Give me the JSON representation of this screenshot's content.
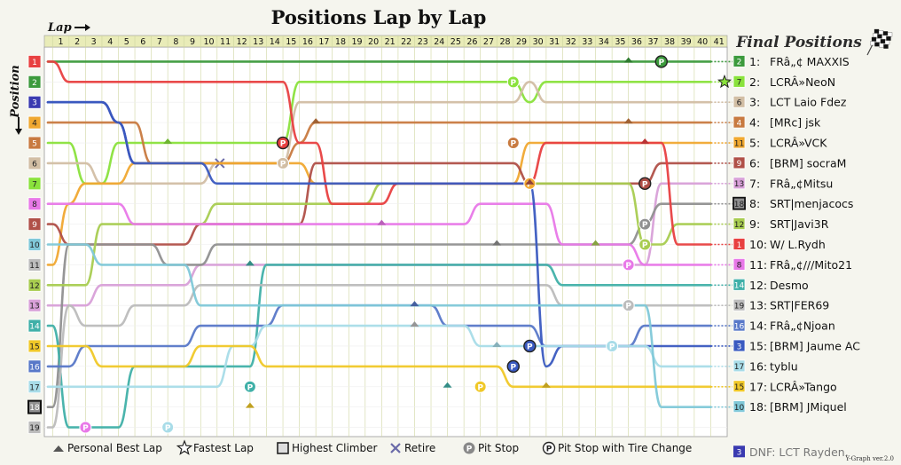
{
  "chart_data": {
    "type": "line",
    "title": "Positions Lap by Lap",
    "xlabel": "Lap",
    "ylabel": "Position",
    "laps": [
      1,
      2,
      3,
      4,
      5,
      6,
      7,
      8,
      9,
      10,
      11,
      12,
      13,
      14,
      15,
      16,
      17,
      18,
      19,
      20,
      21,
      22,
      23,
      24,
      25,
      26,
      27,
      28,
      29,
      30,
      31,
      32,
      33,
      34,
      35,
      36,
      37,
      38,
      39,
      40,
      41
    ],
    "start_positions": [
      "1",
      "2",
      "3",
      "4",
      "5",
      "6",
      "7",
      "8",
      "9",
      "10",
      "11",
      "12",
      "13",
      "14",
      "15",
      "16",
      "17",
      "18",
      "19"
    ],
    "final_positions_title": "Final Positions",
    "series": [
      {
        "grid": 2,
        "finish": 1,
        "color": "#3c9a3c",
        "name": "FRâ„¢ MAXXIS",
        "positions": [
          1,
          1,
          1,
          1,
          1,
          1,
          1,
          1,
          1,
          1,
          1,
          1,
          1,
          1,
          1,
          1,
          1,
          1,
          1,
          1,
          1,
          1,
          1,
          1,
          1,
          1,
          1,
          1,
          1,
          1,
          1,
          1,
          1,
          1,
          1,
          1,
          1,
          1,
          1,
          1,
          1
        ]
      },
      {
        "grid": 7,
        "finish": 2,
        "color": "#8ae23c",
        "name": "LCRÂ»NeoN",
        "positions": [
          5,
          5,
          7,
          7,
          5,
          5,
          5,
          5,
          5,
          5,
          5,
          5,
          5,
          5,
          5,
          2,
          2,
          2,
          2,
          2,
          2,
          2,
          2,
          2,
          2,
          2,
          2,
          2,
          2,
          3,
          2,
          2,
          2,
          2,
          2,
          2,
          2,
          2,
          2,
          2,
          2
        ]
      },
      {
        "grid": 6,
        "finish": 3,
        "color": "#d2bea4",
        "name": "LCT Laio Fdez",
        "positions": [
          6,
          6,
          6,
          7,
          7,
          7,
          7,
          7,
          7,
          7,
          6,
          6,
          6,
          6,
          6,
          3,
          3,
          3,
          3,
          3,
          3,
          3,
          3,
          3,
          3,
          3,
          3,
          3,
          3,
          2,
          3,
          3,
          3,
          3,
          3,
          3,
          3,
          3,
          3,
          3,
          3
        ]
      },
      {
        "grid": 4,
        "finish": 4,
        "color": "#c87a40",
        "name": "[MRc] jsk",
        "positions": [
          4,
          4,
          4,
          4,
          4,
          4,
          6,
          6,
          6,
          6,
          6,
          6,
          6,
          6,
          6,
          5,
          4,
          4,
          4,
          4,
          4,
          4,
          4,
          4,
          4,
          4,
          4,
          4,
          4,
          4,
          4,
          4,
          4,
          4,
          4,
          4,
          4,
          4,
          4,
          4,
          4
        ]
      },
      {
        "grid": 11,
        "finish": 5,
        "color": "#f0a830",
        "name": "LCRÂ»VCK",
        "positions": [
          11,
          8,
          7,
          7,
          7,
          6,
          6,
          6,
          6,
          6,
          6,
          6,
          6,
          6,
          6,
          6,
          7,
          7,
          7,
          7,
          7,
          7,
          7,
          7,
          7,
          7,
          7,
          7,
          7,
          5,
          5,
          5,
          5,
          5,
          5,
          5,
          5,
          5,
          5,
          5,
          5
        ]
      },
      {
        "grid": 9,
        "finish": 6,
        "color": "#b05048",
        "name": "[BRM] socraM",
        "positions": [
          9,
          10,
          10,
          10,
          10,
          10,
          10,
          10,
          10,
          9,
          9,
          9,
          9,
          9,
          9,
          9,
          6,
          6,
          6,
          6,
          6,
          6,
          6,
          6,
          6,
          6,
          6,
          6,
          6,
          7,
          7,
          7,
          7,
          7,
          7,
          7,
          7,
          6,
          6,
          6,
          6
        ]
      },
      {
        "grid": 13,
        "finish": 7,
        "color": "#d8a0d8",
        "name": "FRâ„¢Mitsu",
        "positions": [
          13,
          13,
          13,
          12,
          12,
          12,
          12,
          12,
          12,
          11,
          11,
          11,
          11,
          11,
          11,
          11,
          11,
          11,
          11,
          11,
          11,
          11,
          11,
          11,
          11,
          11,
          11,
          11,
          11,
          11,
          11,
          11,
          11,
          11,
          11,
          11,
          11,
          7,
          7,
          7,
          7
        ]
      },
      {
        "grid": 18,
        "finish": 8,
        "color": "#909090",
        "name": "SRT|menjacocs",
        "positions": [
          18,
          10,
          10,
          10,
          10,
          10,
          10,
          11,
          11,
          11,
          10,
          10,
          10,
          10,
          10,
          10,
          10,
          10,
          10,
          10,
          10,
          10,
          10,
          10,
          10,
          10,
          10,
          10,
          10,
          10,
          10,
          10,
          10,
          10,
          10,
          10,
          9,
          8,
          8,
          8,
          8
        ]
      },
      {
        "grid": 12,
        "finish": 9,
        "color": "#a8cc50",
        "name": "SRT|Javi3R",
        "positions": [
          12,
          12,
          12,
          9,
          9,
          9,
          9,
          9,
          9,
          9,
          8,
          8,
          8,
          8,
          8,
          8,
          8,
          8,
          8,
          8,
          7,
          7,
          7,
          7,
          7,
          7,
          7,
          7,
          7,
          7,
          7,
          7,
          7,
          7,
          7,
          7,
          10,
          10,
          9,
          9,
          9
        ]
      },
      {
        "grid": 1,
        "finish": 10,
        "color": "#e84040",
        "name": "W/ L.Rydh",
        "positions": [
          1,
          2,
          2,
          2,
          2,
          2,
          2,
          2,
          2,
          2,
          2,
          2,
          2,
          2,
          2,
          5,
          5,
          8,
          8,
          8,
          8,
          7,
          7,
          7,
          7,
          7,
          7,
          7,
          7,
          7,
          5,
          5,
          5,
          5,
          5,
          5,
          5,
          5,
          10,
          10,
          10
        ]
      },
      {
        "grid": 8,
        "finish": 11,
        "color": "#e878e8",
        "name": "FRâ„¢///Mito21",
        "positions": [
          8,
          8,
          8,
          8,
          8,
          9,
          9,
          9,
          9,
          9,
          9,
          9,
          9,
          9,
          9,
          9,
          9,
          9,
          9,
          9,
          9,
          9,
          9,
          9,
          9,
          9,
          8,
          8,
          8,
          8,
          8,
          10,
          10,
          10,
          10,
          10,
          11,
          11,
          11,
          11,
          11
        ]
      },
      {
        "grid": 14,
        "finish": 12,
        "color": "#40b0a8",
        "name": "Desmo",
        "positions": [
          14,
          19,
          19,
          19,
          19,
          16,
          16,
          16,
          16,
          16,
          16,
          16,
          16,
          11,
          11,
          11,
          11,
          11,
          11,
          11,
          11,
          11,
          11,
          11,
          11,
          11,
          11,
          11,
          11,
          11,
          11,
          12,
          12,
          12,
          12,
          12,
          12,
          12,
          12,
          12,
          12
        ]
      },
      {
        "grid": 19,
        "finish": 13,
        "color": "#bcbcbc",
        "name": "SRT|FER69",
        "positions": [
          19,
          13,
          14,
          14,
          14,
          13,
          13,
          13,
          13,
          12,
          12,
          12,
          12,
          12,
          12,
          12,
          12,
          12,
          12,
          12,
          12,
          12,
          12,
          12,
          12,
          12,
          12,
          12,
          12,
          12,
          12,
          13,
          13,
          13,
          13,
          13,
          13,
          13,
          13,
          13,
          13
        ]
      },
      {
        "grid": 16,
        "finish": 14,
        "color": "#5878c8",
        "name": "FRâ„¢Njoan",
        "positions": [
          16,
          16,
          15,
          15,
          15,
          15,
          15,
          15,
          15,
          14,
          14,
          14,
          14,
          14,
          13,
          13,
          13,
          13,
          13,
          13,
          13,
          13,
          13,
          13,
          14,
          14,
          14,
          14,
          14,
          14,
          15,
          15,
          15,
          15,
          15,
          15,
          14,
          14,
          14,
          14,
          14
        ]
      },
      {
        "grid": 3,
        "finish": 15,
        "color": "#3a5ac0",
        "name": "[BRM] Jaume AC",
        "positions": [
          3,
          3,
          3,
          3,
          4,
          6,
          6,
          6,
          6,
          6,
          7,
          7,
          7,
          7,
          7,
          7,
          7,
          7,
          7,
          7,
          7,
          7,
          7,
          7,
          7,
          7,
          7,
          7,
          7,
          7,
          16,
          15,
          15,
          15,
          15,
          15,
          15,
          15,
          15,
          15,
          15
        ]
      },
      {
        "grid": 17,
        "finish": 16,
        "color": "#a8dce8",
        "name": "tyblu",
        "positions": [
          17,
          17,
          17,
          17,
          17,
          17,
          17,
          17,
          17,
          17,
          17,
          15,
          15,
          14,
          14,
          14,
          14,
          14,
          14,
          14,
          14,
          14,
          14,
          14,
          14,
          14,
          15,
          15,
          15,
          15,
          15,
          15,
          15,
          15,
          15,
          15,
          15,
          16,
          16,
          16,
          16
        ]
      },
      {
        "grid": 15,
        "finish": 17,
        "color": "#f0c828",
        "name": "LCRÂ»Tango",
        "positions": [
          15,
          15,
          15,
          16,
          16,
          16,
          16,
          16,
          16,
          15,
          15,
          15,
          15,
          16,
          16,
          16,
          16,
          16,
          16,
          16,
          16,
          16,
          16,
          16,
          16,
          16,
          16,
          16,
          17,
          17,
          17,
          17,
          17,
          17,
          17,
          17,
          17,
          17,
          17,
          17,
          17
        ]
      },
      {
        "grid": 10,
        "finish": 18,
        "color": "#80c8d8",
        "name": "[BRM] JMiquel",
        "positions": [
          10,
          10,
          10,
          11,
          11,
          11,
          11,
          11,
          11,
          13,
          13,
          13,
          13,
          13,
          13,
          13,
          13,
          13,
          13,
          13,
          13,
          13,
          13,
          13,
          13,
          13,
          13,
          13,
          13,
          13,
          13,
          13,
          13,
          13,
          13,
          13,
          13,
          18,
          18,
          18,
          18
        ]
      }
    ],
    "dnf": {
      "grid": 3,
      "color": "#3a3ab0",
      "label": "DNF: LCT Rayden.",
      "retired_after_lap": 11
    }
  },
  "legend": {
    "personal_best": "Personal Best Lap",
    "fastest": "Fastest Lap",
    "highest_climber": "Highest Climber",
    "retire": "Retire",
    "pit_stop": "Pit Stop",
    "pit_tire": "Pit Stop with Tire Change"
  },
  "pit_letter": "P",
  "version": "Y-Graph ver.2.0"
}
